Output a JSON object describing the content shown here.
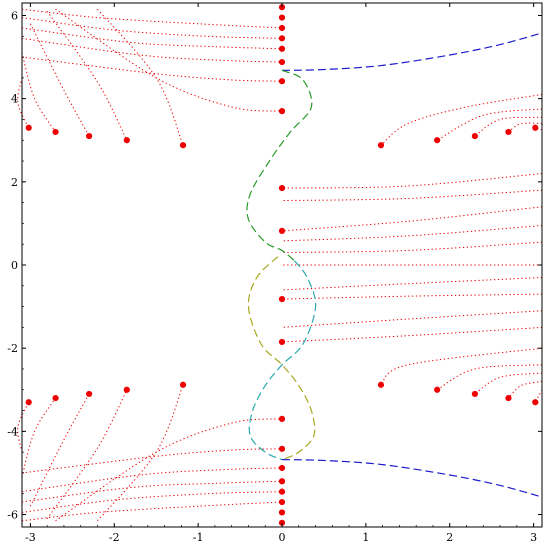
{
  "chart_data": {
    "type": "scatter",
    "xlim": [
      -3.1,
      3.1
    ],
    "ylim": [
      -6.3,
      6.3
    ],
    "grid": false,
    "x_ticks": [
      {
        "v": -3,
        "label": "-3"
      },
      {
        "v": -2,
        "label": "-2"
      },
      {
        "v": -1,
        "label": "-1"
      },
      {
        "v": 0,
        "label": "0"
      },
      {
        "v": 1,
        "label": "1"
      },
      {
        "v": 2,
        "label": "2"
      },
      {
        "v": 3,
        "label": "3"
      }
    ],
    "y_ticks": [
      {
        "v": 6,
        "label": "6"
      },
      {
        "v": 4,
        "label": "4"
      },
      {
        "v": 2,
        "label": "2"
      },
      {
        "v": 0,
        "label": "0"
      },
      {
        "v": -2,
        "label": "-2"
      },
      {
        "v": -4,
        "label": "-4"
      },
      {
        "v": -6,
        "label": "-6"
      }
    ],
    "colors": {
      "points": "#ee0000",
      "trajectories": "#ee0000",
      "blue_branch": "#1a1acc",
      "green_branch": "#2a9a2a",
      "olive_branch": "#a8a820",
      "cyan_branch": "#2aaab0"
    },
    "points": [
      [
        0,
        6.2
      ],
      [
        0,
        5.95
      ],
      [
        0,
        5.7
      ],
      [
        0,
        5.45
      ],
      [
        0,
        5.2
      ],
      [
        0,
        4.88
      ],
      [
        0,
        4.42
      ],
      [
        0,
        3.7
      ],
      [
        0,
        1.85
      ],
      [
        0,
        0.82
      ],
      [
        0,
        -0.82
      ],
      [
        0,
        -1.85
      ],
      [
        0,
        -3.7
      ],
      [
        0,
        -4.42
      ],
      [
        0,
        -4.88
      ],
      [
        0,
        -5.2
      ],
      [
        0,
        -5.45
      ],
      [
        0,
        -5.7
      ],
      [
        0,
        -5.95
      ],
      [
        0,
        -6.2
      ],
      [
        -3.02,
        3.3
      ],
      [
        -2.7,
        3.2
      ],
      [
        -2.3,
        3.1
      ],
      [
        -1.85,
        3.0
      ],
      [
        -1.18,
        2.88
      ],
      [
        1.18,
        2.88
      ],
      [
        1.85,
        3.0
      ],
      [
        2.3,
        3.1
      ],
      [
        2.7,
        3.2
      ],
      [
        3.02,
        3.3
      ],
      [
        -3.02,
        -3.3
      ],
      [
        -2.7,
        -3.2
      ],
      [
        -2.3,
        -3.1
      ],
      [
        -1.85,
        -3.0
      ],
      [
        -1.18,
        -2.88
      ],
      [
        1.18,
        -2.88
      ],
      [
        1.85,
        -3.0
      ],
      [
        2.3,
        -3.1
      ],
      [
        2.7,
        -3.2
      ],
      [
        3.02,
        -3.3
      ]
    ],
    "trajectories": [
      [
        [
          -3.1,
          6.15
        ],
        [
          -2.2,
          5.95
        ],
        [
          -1.0,
          5.8
        ],
        [
          0,
          5.7
        ]
      ],
      [
        [
          -3.1,
          5.95
        ],
        [
          -2.0,
          5.65
        ],
        [
          -0.9,
          5.5
        ],
        [
          0,
          5.45
        ]
      ],
      [
        [
          -3.1,
          5.7
        ],
        [
          -1.8,
          5.35
        ],
        [
          -0.8,
          5.25
        ],
        [
          0,
          5.2
        ]
      ],
      [
        [
          -3.1,
          5.45
        ],
        [
          -1.7,
          5.05
        ],
        [
          -0.7,
          4.92
        ],
        [
          0,
          4.88
        ]
      ],
      [
        [
          -3.1,
          5.0
        ],
        [
          -1.5,
          4.6
        ],
        [
          -0.6,
          4.45
        ],
        [
          0,
          4.42
        ]
      ],
      [
        [
          -2.7,
          6.15
        ],
        [
          -1.5,
          4.5
        ],
        [
          -0.6,
          3.8
        ],
        [
          0,
          3.7
        ]
      ],
      [
        [
          -3.1,
          4.5
        ],
        [
          -3.15,
          3.9
        ],
        [
          -3.02,
          3.3
        ]
      ],
      [
        [
          -3.1,
          5.1
        ],
        [
          -2.95,
          4.0
        ],
        [
          -2.7,
          3.2
        ]
      ],
      [
        [
          -3.0,
          5.8
        ],
        [
          -2.6,
          4.2
        ],
        [
          -2.3,
          3.1
        ]
      ],
      [
        [
          -2.8,
          6.1
        ],
        [
          -2.2,
          4.4
        ],
        [
          -1.85,
          3.0
        ]
      ],
      [
        [
          -2.2,
          6.15
        ],
        [
          -1.5,
          4.5
        ],
        [
          -1.18,
          2.88
        ]
      ],
      [
        [
          3.1,
          4.1
        ],
        [
          2.2,
          3.8
        ],
        [
          1.5,
          3.4
        ],
        [
          1.18,
          2.88
        ]
      ],
      [
        [
          3.1,
          3.75
        ],
        [
          2.4,
          3.6
        ],
        [
          1.85,
          3.0
        ]
      ],
      [
        [
          3.1,
          3.55
        ],
        [
          2.6,
          3.5
        ],
        [
          2.3,
          3.1
        ]
      ],
      [
        [
          3.1,
          3.4
        ],
        [
          2.85,
          3.4
        ],
        [
          2.7,
          3.2
        ]
      ],
      [
        [
          3.1,
          3.25
        ],
        [
          3.02,
          3.3
        ]
      ],
      [
        [
          3.1,
          2.2
        ],
        [
          1.5,
          1.9
        ],
        [
          0,
          1.85
        ]
      ],
      [
        [
          3.1,
          1.8
        ],
        [
          1.5,
          1.6
        ],
        [
          0,
          1.55
        ]
      ],
      [
        [
          3.1,
          1.4
        ],
        [
          1.5,
          1.05
        ],
        [
          0,
          0.82
        ]
      ],
      [
        [
          3.1,
          0.95
        ],
        [
          1.5,
          0.7
        ],
        [
          0,
          0.58
        ]
      ],
      [
        [
          3.1,
          0.55
        ],
        [
          1.5,
          0.35
        ],
        [
          0,
          0.3
        ]
      ],
      [
        [
          3.1,
          0.0
        ],
        [
          0,
          0.0
        ]
      ],
      [
        [
          3.1,
          -0.3
        ],
        [
          1.5,
          -0.45
        ],
        [
          0,
          -0.6
        ]
      ],
      [
        [
          3.1,
          -0.7
        ],
        [
          1.5,
          -0.75
        ],
        [
          0,
          -0.82
        ]
      ],
      [
        [
          3.1,
          -1.1
        ],
        [
          1.5,
          -1.3
        ],
        [
          0,
          -1.5
        ]
      ],
      [
        [
          3.1,
          -1.5
        ],
        [
          1.5,
          -1.7
        ],
        [
          0,
          -1.85
        ]
      ],
      [
        [
          3.1,
          -2.0
        ],
        [
          1.5,
          -2.4
        ],
        [
          1.18,
          -2.88
        ]
      ],
      [
        [
          3.1,
          -2.4
        ],
        [
          2.3,
          -2.5
        ],
        [
          1.85,
          -3.0
        ]
      ],
      [
        [
          3.1,
          -2.6
        ],
        [
          2.6,
          -2.7
        ],
        [
          2.3,
          -3.1
        ]
      ],
      [
        [
          3.1,
          -2.8
        ],
        [
          2.85,
          -2.9
        ],
        [
          2.7,
          -3.2
        ]
      ],
      [
        [
          3.1,
          -3.0
        ],
        [
          3.02,
          -3.3
        ]
      ],
      [
        [
          -3.1,
          -6.15
        ],
        [
          -2.2,
          -5.95
        ],
        [
          -1.0,
          -5.8
        ],
        [
          0,
          -5.7
        ]
      ],
      [
        [
          -3.1,
          -5.95
        ],
        [
          -2.0,
          -5.65
        ],
        [
          -0.9,
          -5.5
        ],
        [
          0,
          -5.45
        ]
      ],
      [
        [
          -3.1,
          -5.7
        ],
        [
          -1.8,
          -5.35
        ],
        [
          -0.8,
          -5.25
        ],
        [
          0,
          -5.2
        ]
      ],
      [
        [
          -3.1,
          -5.45
        ],
        [
          -1.7,
          -5.05
        ],
        [
          -0.7,
          -4.92
        ],
        [
          0,
          -4.88
        ]
      ],
      [
        [
          -3.1,
          -5.0
        ],
        [
          -1.5,
          -4.6
        ],
        [
          -0.6,
          -4.45
        ],
        [
          0,
          -4.42
        ]
      ],
      [
        [
          -2.7,
          -6.15
        ],
        [
          -1.5,
          -4.5
        ],
        [
          -0.6,
          -3.8
        ],
        [
          0,
          -3.7
        ]
      ],
      [
        [
          -3.1,
          -4.5
        ],
        [
          -3.15,
          -3.9
        ],
        [
          -3.02,
          -3.3
        ]
      ],
      [
        [
          -3.1,
          -5.1
        ],
        [
          -2.95,
          -4.0
        ],
        [
          -2.7,
          -3.2
        ]
      ],
      [
        [
          -3.0,
          -5.8
        ],
        [
          -2.6,
          -4.2
        ],
        [
          -2.3,
          -3.1
        ]
      ],
      [
        [
          -2.8,
          -6.1
        ],
        [
          -2.2,
          -4.4
        ],
        [
          -1.85,
          -3.0
        ]
      ],
      [
        [
          -2.2,
          -6.15
        ],
        [
          -1.5,
          -4.5
        ],
        [
          -1.18,
          -2.88
        ]
      ]
    ],
    "curves": [
      {
        "color_key": "blue_branch",
        "dash": "8,4",
        "points": [
          [
            0,
            4.68
          ],
          [
            0.5,
            4.7
          ],
          [
            1.2,
            4.8
          ],
          [
            2.0,
            5.05
          ],
          [
            2.6,
            5.3
          ],
          [
            3.1,
            5.58
          ]
        ]
      },
      {
        "color_key": "blue_branch",
        "dash": "8,4",
        "points": [
          [
            0,
            -4.68
          ],
          [
            0.5,
            -4.7
          ],
          [
            1.2,
            -4.8
          ],
          [
            2.0,
            -5.05
          ],
          [
            2.6,
            -5.3
          ],
          [
            3.1,
            -5.58
          ]
        ]
      },
      {
        "color_key": "green_branch",
        "dash": "8,4",
        "points": [
          [
            0,
            4.68
          ],
          [
            0.25,
            4.45
          ],
          [
            0.35,
            3.8
          ],
          [
            0.1,
            3.2
          ],
          [
            -0.15,
            2.5
          ],
          [
            -0.38,
            1.7
          ],
          [
            -0.4,
            1.1
          ],
          [
            -0.2,
            0.55
          ],
          [
            0,
            0.35
          ],
          [
            0.15,
            0.1
          ]
        ]
      },
      {
        "color_key": "olive_branch",
        "dash": "8,4",
        "points": [
          [
            -0.05,
            0.2
          ],
          [
            -0.3,
            -0.3
          ],
          [
            -0.4,
            -1.0
          ],
          [
            -0.25,
            -1.9
          ],
          [
            0,
            -2.4
          ],
          [
            0.2,
            -2.9
          ],
          [
            0.35,
            -3.5
          ],
          [
            0.38,
            -4.1
          ],
          [
            0.2,
            -4.5
          ],
          [
            0,
            -4.68
          ]
        ]
      },
      {
        "color_key": "cyan_branch",
        "dash": "8,4",
        "points": [
          [
            0.15,
            0.1
          ],
          [
            0.3,
            -0.3
          ],
          [
            0.4,
            -1.0
          ],
          [
            0.25,
            -1.9
          ],
          [
            0,
            -2.4
          ],
          [
            -0.2,
            -2.9
          ],
          [
            -0.35,
            -3.5
          ],
          [
            -0.38,
            -4.1
          ],
          [
            -0.2,
            -4.5
          ],
          [
            0,
            -4.68
          ]
        ]
      }
    ]
  }
}
